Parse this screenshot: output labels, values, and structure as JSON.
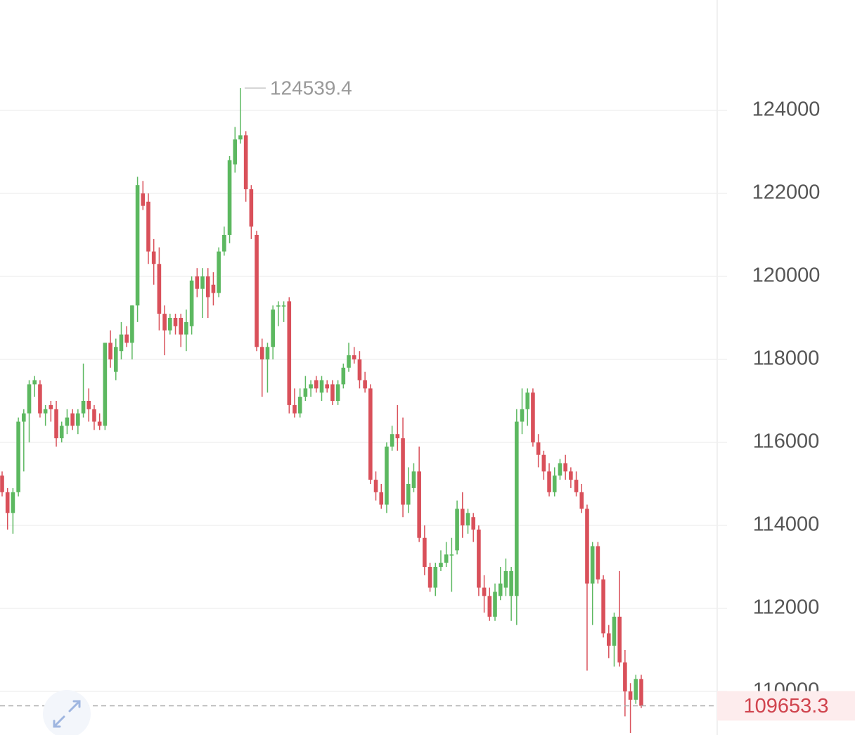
{
  "chart_data": {
    "type": "candlestick",
    "up_color": "#5cb860",
    "down_color": "#d9505a",
    "grid": true,
    "ylim": [
      108950,
      126660
    ],
    "yticks": [
      110000,
      112000,
      114000,
      116000,
      118000,
      120000,
      122000,
      124000
    ],
    "candles": [
      [
        115200,
        115300,
        114700,
        114800
      ],
      [
        114800,
        114900,
        113900,
        114300
      ],
      [
        114300,
        114900,
        113800,
        114800
      ],
      [
        114800,
        116600,
        114700,
        116500
      ],
      [
        116500,
        116800,
        115300,
        116700
      ],
      [
        116700,
        117500,
        116000,
        117400
      ],
      [
        117400,
        117600,
        117100,
        117500
      ],
      [
        117400,
        117500,
        116600,
        116700
      ],
      [
        116700,
        116900,
        116400,
        116800
      ],
      [
        116900,
        117000,
        116500,
        116800
      ],
      [
        116800,
        117000,
        115900,
        116100
      ],
      [
        116100,
        116500,
        116000,
        116400
      ],
      [
        116400,
        116800,
        116200,
        116600
      ],
      [
        116700,
        116800,
        116300,
        116400
      ],
      [
        116400,
        116800,
        116200,
        116700
      ],
      [
        116700,
        117900,
        116600,
        117000
      ],
      [
        117000,
        117300,
        116500,
        116800
      ],
      [
        116800,
        116900,
        116300,
        116500
      ],
      [
        116500,
        116700,
        116300,
        116400
      ],
      [
        116400,
        118400,
        116300,
        118400
      ],
      [
        118400,
        118700,
        117800,
        118000
      ],
      [
        117700,
        118500,
        117500,
        118300
      ],
      [
        118200,
        118900,
        118000,
        118600
      ],
      [
        118600,
        118800,
        118300,
        118400
      ],
      [
        118400,
        119300,
        118000,
        119300
      ],
      [
        119300,
        122400,
        118900,
        122200
      ],
      [
        122000,
        122300,
        121600,
        121700
      ],
      [
        121800,
        122000,
        120300,
        120600
      ],
      [
        120600,
        120900,
        119800,
        120300
      ],
      [
        120300,
        120700,
        118700,
        119100
      ],
      [
        119100,
        119300,
        118100,
        118700
      ],
      [
        118700,
        119100,
        118600,
        119000
      ],
      [
        119000,
        119100,
        118600,
        118800
      ],
      [
        119000,
        119100,
        118300,
        118600
      ],
      [
        118600,
        119200,
        118200,
        118900
      ],
      [
        118800,
        120000,
        118600,
        119900
      ],
      [
        120000,
        120200,
        119500,
        119700
      ],
      [
        119700,
        120200,
        119000,
        120000
      ],
      [
        120000,
        120200,
        119000,
        119500
      ],
      [
        119800,
        120100,
        119300,
        119600
      ],
      [
        119600,
        120700,
        119500,
        120600
      ],
      [
        120600,
        121200,
        120500,
        121000
      ],
      [
        121000,
        122900,
        120800,
        122800
      ],
      [
        122700,
        123600,
        122500,
        123300
      ],
      [
        123300,
        124539.4,
        123200,
        123400
      ],
      [
        123400,
        123500,
        121800,
        122100
      ],
      [
        122100,
        122200,
        120900,
        121200
      ],
      [
        121000,
        121100,
        118200,
        118300
      ],
      [
        118300,
        118500,
        117100,
        118000
      ],
      [
        118000,
        118400,
        117200,
        118300
      ],
      [
        118300,
        119300,
        118000,
        119200
      ],
      [
        119300,
        119400,
        118800,
        119300
      ],
      [
        119300,
        119400,
        118900,
        119300
      ],
      [
        119400,
        119500,
        116700,
        116900
      ],
      [
        116900,
        117300,
        116600,
        116700
      ],
      [
        116700,
        117300,
        116600,
        117100
      ],
      [
        117100,
        117600,
        117000,
        117300
      ],
      [
        117300,
        117500,
        117100,
        117400
      ],
      [
        117500,
        117600,
        117200,
        117300
      ],
      [
        117200,
        117600,
        117000,
        117500
      ],
      [
        117400,
        117500,
        117200,
        117300
      ],
      [
        117400,
        117500,
        116900,
        117000
      ],
      [
        117000,
        117500,
        116900,
        117400
      ],
      [
        117400,
        117900,
        117300,
        117800
      ],
      [
        117800,
        118400,
        117700,
        118100
      ],
      [
        118100,
        118300,
        117900,
        118000
      ],
      [
        118000,
        118200,
        117300,
        117500
      ],
      [
        117500,
        117700,
        117200,
        117300
      ],
      [
        117300,
        117400,
        115000,
        115100
      ],
      [
        115100,
        115300,
        114600,
        114800
      ],
      [
        114800,
        115000,
        114400,
        114500
      ],
      [
        114500,
        116000,
        114300,
        115900
      ],
      [
        115900,
        116400,
        115800,
        116200
      ],
      [
        116200,
        116900,
        115800,
        116100
      ],
      [
        116100,
        116600,
        114200,
        114500
      ],
      [
        114500,
        115400,
        114300,
        115000
      ],
      [
        114900,
        115500,
        114800,
        115300
      ],
      [
        115300,
        115900,
        113600,
        113700
      ],
      [
        113700,
        114000,
        112800,
        113000
      ],
      [
        113000,
        113100,
        112400,
        112500
      ],
      [
        112500,
        113100,
        112300,
        113000
      ],
      [
        113000,
        113400,
        112900,
        113100
      ],
      [
        113100,
        113600,
        113000,
        113300
      ],
      [
        113300,
        113700,
        112400,
        113300
      ],
      [
        113400,
        114600,
        113300,
        114400
      ],
      [
        114400,
        114800,
        113700,
        114000
      ],
      [
        114000,
        114400,
        113800,
        114300
      ],
      [
        114200,
        114300,
        113600,
        113900
      ],
      [
        113900,
        114000,
        112300,
        112500
      ],
      [
        112500,
        112800,
        111900,
        112300
      ],
      [
        112300,
        112500,
        111700,
        111800
      ],
      [
        111800,
        112600,
        111700,
        112400
      ],
      [
        112300,
        113000,
        112200,
        112600
      ],
      [
        112500,
        113200,
        112300,
        112900
      ],
      [
        112300,
        113000,
        111700,
        112900
      ],
      [
        112300,
        116800,
        111600,
        116500
      ],
      [
        116500,
        117300,
        116200,
        116800
      ],
      [
        116800,
        117300,
        116400,
        117200
      ],
      [
        117200,
        117300,
        115900,
        116000
      ],
      [
        116000,
        116200,
        115400,
        115700
      ],
      [
        115700,
        115800,
        115100,
        115300
      ],
      [
        115300,
        115500,
        114700,
        114800
      ],
      [
        114800,
        115400,
        114700,
        115200
      ],
      [
        115200,
        115600,
        115100,
        115500
      ],
      [
        115500,
        115700,
        115100,
        115300
      ],
      [
        115300,
        115400,
        114900,
        115100
      ],
      [
        115100,
        115300,
        114700,
        114800
      ],
      [
        114800,
        115000,
        114300,
        114400
      ],
      [
        114400,
        114500,
        110500,
        112600
      ],
      [
        112600,
        113600,
        111600,
        113500
      ],
      [
        113500,
        113600,
        112600,
        112700
      ],
      [
        112700,
        112800,
        111300,
        111400
      ],
      [
        111400,
        111600,
        110800,
        111100
      ],
      [
        111100,
        111900,
        110600,
        111800
      ],
      [
        111800,
        112900,
        110600,
        110700
      ],
      [
        110700,
        111000,
        109400,
        110000
      ],
      [
        110000,
        110200,
        109000,
        109800
      ],
      [
        109800,
        110400,
        109700,
        110300
      ],
      [
        110300,
        110400,
        109600,
        109653.3
      ]
    ]
  }
}
